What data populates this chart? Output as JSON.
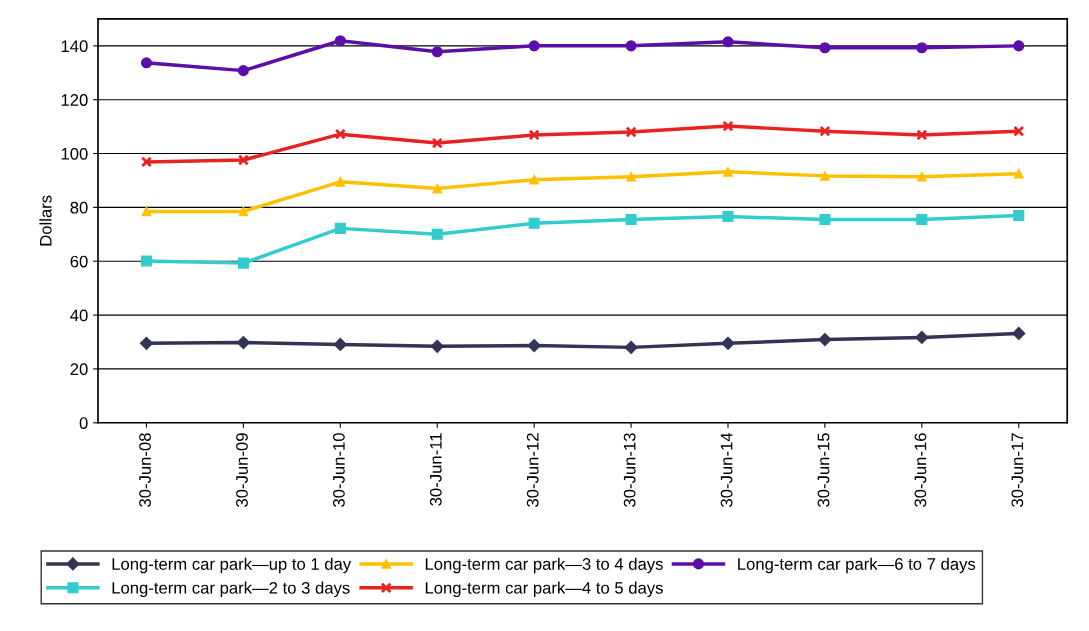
{
  "chart_data": {
    "type": "line",
    "ylabel": "Dollars",
    "categories": [
      "30-Jun-08",
      "30-Jun-09",
      "30-Jun-10",
      "30-Jun-11",
      "30-Jun-12",
      "30-Jun-13",
      "30-Jun-14",
      "30-Jun-15",
      "30-Jun-16",
      "30-Jun-17"
    ],
    "series": [
      {
        "name": "Long-term car park—up to 1 day",
        "color": "#333355",
        "marker": "diamond",
        "values": [
          29.5,
          29.8,
          29.1,
          28.4,
          28.7,
          28.0,
          29.5,
          30.9,
          31.7,
          33.2
        ]
      },
      {
        "name": "Long-term car park—2 to 3 days",
        "color": "#33cccc",
        "marker": "square",
        "values": [
          60.1,
          59.3,
          72.2,
          70.0,
          74.1,
          75.5,
          76.6,
          75.5,
          75.5,
          77.0
        ]
      },
      {
        "name": "Long-term car park—3 to 4 days",
        "color": "#ffc000",
        "marker": "triangle",
        "values": [
          78.5,
          78.5,
          89.5,
          87.0,
          90.3,
          91.4,
          93.2,
          91.7,
          91.4,
          92.5
        ]
      },
      {
        "name": "Long-term car park—4 to 5 days",
        "color": "#e8231f",
        "marker": "cross",
        "values": [
          96.9,
          97.6,
          107.2,
          103.9,
          106.9,
          108.0,
          110.2,
          108.3,
          106.9,
          108.3
        ]
      },
      {
        "name": "Long-term car park—6 to 7 days",
        "color": "#5b0fa8",
        "marker": "circle",
        "values": [
          133.7,
          130.8,
          141.9,
          137.8,
          140.0,
          140.0,
          141.5,
          139.3,
          139.3,
          140.0
        ]
      }
    ],
    "ylim": [
      0,
      150
    ],
    "yticks": [
      0,
      20,
      40,
      60,
      80,
      100,
      120,
      140
    ],
    "grid": "y",
    "legend": "bottom",
    "line_style": "solid"
  }
}
